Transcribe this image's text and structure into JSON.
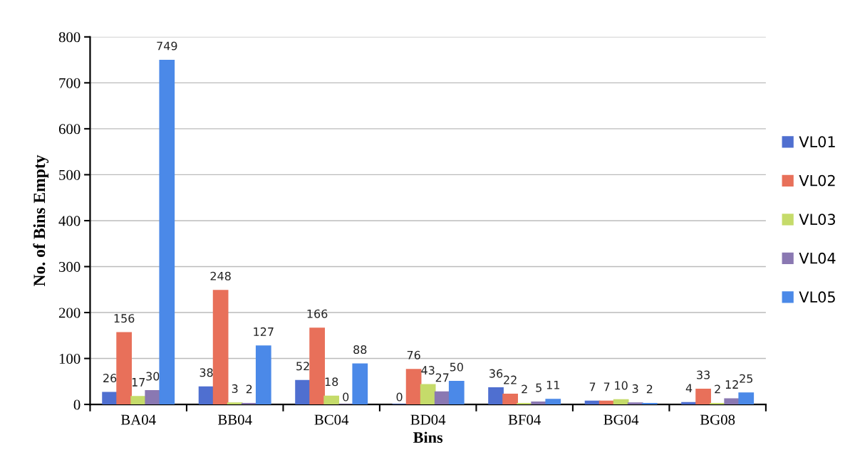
{
  "chart_data": {
    "type": "bar",
    "xlabel": "Bins",
    "ylabel": "No. of Bins Empty",
    "categories": [
      "BA04",
      "BB04",
      "BC04",
      "BD04",
      "BF04",
      "BG04",
      "BG08"
    ],
    "series": [
      {
        "name": "VL01",
        "color": "#4f6fd0",
        "values": [
          26,
          38,
          52,
          0,
          36,
          7,
          4
        ]
      },
      {
        "name": "VL02",
        "color": "#e8705a",
        "values": [
          156,
          248,
          166,
          76,
          22,
          7,
          33
        ]
      },
      {
        "name": "VL03",
        "color": "#c5db6a",
        "values": [
          17,
          3,
          18,
          43,
          2,
          10,
          2
        ]
      },
      {
        "name": "VL04",
        "color": "#8a78b2",
        "values": [
          30,
          2,
          0,
          27,
          5,
          3,
          12
        ]
      },
      {
        "name": "VL05",
        "color": "#4b89e8",
        "values": [
          749,
          127,
          88,
          50,
          11,
          2,
          25
        ]
      }
    ],
    "ylim": [
      0,
      800
    ],
    "yticks": [
      0,
      100,
      200,
      300,
      400,
      500,
      600,
      700,
      800
    ],
    "grid": "y",
    "legend": "right",
    "data_labels": true
  }
}
